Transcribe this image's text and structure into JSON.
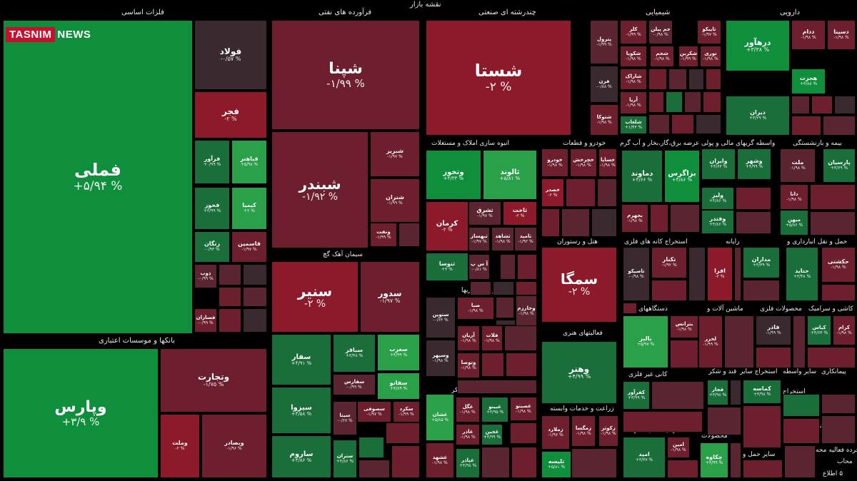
{
  "colors": {
    "g1": "#0f8f3c",
    "g2": "#1a6e3a",
    "g3": "#2aa048",
    "r1": "#8c1a2b",
    "r2": "#6e1f2d",
    "r3": "#5a2430",
    "n": "#3a2a30",
    "rb": "#b0192c"
  },
  "title": "نقشه بازار",
  "logo": {
    "brand": "TASNIM",
    "suffix": "NEWS",
    "tagline": ""
  },
  "sectors": [
    {
      "label": "فلزات اساسی"
    },
    {
      "label": "فرآورده های نفتی"
    },
    {
      "label": "چندرشته ای صنعتی"
    },
    {
      "label": "شیمیایی"
    },
    {
      "label": "دارویی"
    },
    {
      "label": "بانکها و موسسات اعتباری"
    },
    {
      "label": "سیمان آهک گچ"
    },
    {
      "label": "انبوه سازی املاک و مستغلات"
    },
    {
      "label": "خودرو و قطعات"
    },
    {
      "label": "عرضه برق،گاز،بخار و آب گرم"
    },
    {
      "label": "واسطه گریهای مالی و پولی"
    },
    {
      "label": "بیمه و بازنشستگی"
    },
    {
      "label": "هتل و رستوران"
    },
    {
      "label": "استخراج کانه های فلزی"
    },
    {
      "label": "رایانه"
    },
    {
      "label": "حمل و نقل انبارداری و"
    },
    {
      "label": "سرمایه گذاریها"
    },
    {
      "label": "فعالیتهای هنری"
    },
    {
      "label": "دستگاههای برقی"
    },
    {
      "label": "ماشین آلات و"
    },
    {
      "label": "محصولات فلزی"
    },
    {
      "label": "کاشی و سرامیک"
    },
    {
      "label": "غذایی بجز قند و شکر"
    },
    {
      "label": "کانی غیر فلزی"
    },
    {
      "label": "استخراج سایر"
    },
    {
      "label": "قند و شکر"
    },
    {
      "label": "سایر واسطه"
    },
    {
      "label": "پیمانکاری"
    },
    {
      "label": "زراعت و خدمات وابسته"
    },
    {
      "label": "فعالیتهای کمکی به نهاد"
    },
    {
      "label": "محصولات"
    },
    {
      "label": "استخراج"
    },
    {
      "label": "لاستیک و"
    },
    {
      "label": "فنی و"
    },
    {
      "label": "وسایل"
    },
    {
      "label": "سایر حمل و"
    },
    {
      "label": "منسوجات"
    },
    {
      "label": "خرده فعالیه محه"
    },
    {
      "label": "محاب"
    },
    {
      "label": "۵ اطلاع"
    }
  ],
  "tiles": [
    {
      "name": "فملی",
      "pct": "+۵/۹۴ %",
      "c": "g1"
    },
    {
      "name": "فولاد",
      "pct": "-۰/۵۷ %",
      "c": "n"
    },
    {
      "name": "فجر",
      "pct": "-۲ %",
      "c": "r1"
    },
    {
      "name": "فباهنر",
      "pct": "+۵/۹۸ %",
      "c": "g3"
    },
    {
      "name": "فرآور",
      "pct": "+۰/۹۹ %",
      "c": "g2"
    },
    {
      "name": "کیمیا",
      "pct": "+۲ %",
      "c": "g3"
    },
    {
      "name": "فخوز",
      "pct": "+۳/۹۹ %",
      "c": "g2"
    },
    {
      "name": "قاسمین",
      "pct": "-۱/۹۷ %",
      "c": "r2"
    },
    {
      "name": "زنگان",
      "pct": "-۰/۹۳ %",
      "c": "g2"
    },
    {
      "name": "ذوب",
      "pct": "-۰/۹۹ %",
      "c": "r3"
    },
    {
      "name": "فسازان",
      "pct": "-۰/۹۹ %",
      "c": "r2"
    },
    {
      "name": "شپنا",
      "pct": "-۱/۹۹ %",
      "c": "r2"
    },
    {
      "name": "شبندر",
      "pct": "-۱/۹۲ %",
      "c": "r2"
    },
    {
      "name": "شبریز",
      "pct": "-۱/۹۷ %",
      "c": "r2"
    },
    {
      "name": "شتران",
      "pct": "-۱/۹۹ %",
      "c": "r2"
    },
    {
      "name": "ونفت",
      "pct": "-۱/۹۹ %",
      "c": "r2"
    },
    {
      "name": "شستا",
      "pct": "-۲ %",
      "c": "r1"
    },
    {
      "name": "پترول",
      "pct": "-۱/۹۹ %",
      "c": "r3"
    },
    {
      "name": "فرن",
      "pct": "-۰/۸۸ %",
      "c": "n"
    },
    {
      "name": "شتوکا",
      "pct": "-۱/۹۸ %",
      "c": "r2"
    },
    {
      "name": "کلر",
      "pct": "-۱/۹۹ %",
      "c": "r2"
    },
    {
      "name": "جم پیلن",
      "pct": "-۰/۹۸ %",
      "c": "r3"
    },
    {
      "name": "تاپیکو",
      "pct": "-۱/۹۷ %",
      "c": "r2"
    },
    {
      "name": "شکویا",
      "pct": "-۱/۹۸ %",
      "c": "r2"
    },
    {
      "name": "شجم",
      "pct": "-۱/۹۸ %",
      "c": "r2"
    },
    {
      "name": "شکربن",
      "pct": "-۱/۹۹ %",
      "c": "r2"
    },
    {
      "name": "نوری",
      "pct": "-۱/۹۸ %",
      "c": "r2"
    },
    {
      "name": "شاراک",
      "pct": "-۱/۹۸ %",
      "c": "r2"
    },
    {
      "name": "آریا",
      "pct": "-۱/۹۸ %",
      "c": "r2"
    },
    {
      "name": "شلعاب",
      "pct": "+۱/۴۳ %",
      "c": "g2"
    },
    {
      "name": "درهآور",
      "pct": "+۳/۳۸ %",
      "c": "g1"
    },
    {
      "name": "ددام",
      "pct": "-۱/۹۸ %",
      "c": "r2"
    },
    {
      "name": "دسینا",
      "pct": "-۱/۹۸ %",
      "c": "r2"
    },
    {
      "name": "هجرت",
      "pct": "+۳/۸۸ %",
      "c": "g1"
    },
    {
      "name": "دیران",
      "pct": "+۳/۲۹ %",
      "c": "g2"
    },
    {
      "name": "وپارس",
      "pct": "+۳/۹ %",
      "c": "g1"
    },
    {
      "name": "وتجارت",
      "pct": "-۱/۷۵ %",
      "c": "r2"
    },
    {
      "name": "وملت",
      "pct": "-۲ %",
      "c": "r1"
    },
    {
      "name": "وبصادر",
      "pct": "-۱/۹۶ %",
      "c": "r2"
    },
    {
      "name": "سنیر",
      "pct": "-۲ %",
      "c": "r1"
    },
    {
      "name": "سدور",
      "pct": "-۱/۹۷ %",
      "c": "r2"
    },
    {
      "name": "سفار",
      "pct": "+۴/۹۱ %",
      "c": "g2"
    },
    {
      "name": "سباقر",
      "pct": "+۳/۴۸ %",
      "c": "g2"
    },
    {
      "name": "سغرب",
      "pct": "+۴/۹۹ %",
      "c": "g3"
    },
    {
      "name": "سفارس",
      "pct": "-۰/۹۹ %",
      "c": "r3"
    },
    {
      "name": "سفانو",
      "pct": "+۴/۸۹ %",
      "c": "g3"
    },
    {
      "name": "سیزوا",
      "pct": "+۴/۵۸ %",
      "c": "g2"
    },
    {
      "name": "سصوفی",
      "pct": "-۱/۹۷ %",
      "c": "r2"
    },
    {
      "name": "سکرد",
      "pct": "-۱/۹۹ %",
      "c": "r2"
    },
    {
      "name": "سینا",
      "pct": "-۰/۶۷ %",
      "c": "r3"
    },
    {
      "name": "ساروم",
      "pct": "+۴/۸۶ %",
      "c": "g2"
    },
    {
      "name": "ستران",
      "pct": "+۴/۸۶ %",
      "c": "g2"
    },
    {
      "name": "وتخوز",
      "pct": "+۴/۳۳ %",
      "c": "g1"
    },
    {
      "name": "ثالوند",
      "pct": "+۵/۸۱ %",
      "c": "g3"
    },
    {
      "name": "کرمان",
      "pct": "-۲ %",
      "c": "r1"
    },
    {
      "name": "ثشرق",
      "pct": "-۱/۹۷ %",
      "c": "r3"
    },
    {
      "name": "ثاخت",
      "pct": "-۲ %",
      "c": "r1"
    },
    {
      "name": "ثبهساز",
      "pct": "-۱/۹۷ %",
      "c": "r3"
    },
    {
      "name": "ثشاهد",
      "pct": "-۱/۹۸ %",
      "c": "r3"
    },
    {
      "name": "ثامید",
      "pct": "-۱/۹۲ %",
      "c": "r3"
    },
    {
      "name": "ثنوسا",
      "pct": "+۴ %",
      "c": "g2"
    },
    {
      "name": "آ س پ",
      "pct": "-۰/۸۱ %",
      "c": "r3"
    },
    {
      "name": "خساپا",
      "pct": "-۱/۹۸ %",
      "c": "r2"
    },
    {
      "name": "خچرخش",
      "pct": "-۱/۹۸ %",
      "c": "r2"
    },
    {
      "name": "خودرو",
      "pct": "-۱/۹۸ %",
      "c": "r2"
    },
    {
      "name": "خصدر",
      "pct": "-۲ %",
      "c": "r1"
    },
    {
      "name": "دماوند",
      "pct": "+۴/۶۶ %",
      "c": "g2"
    },
    {
      "name": "بزاگرس",
      "pct": "+۴/۸۶ %",
      "c": "g1"
    },
    {
      "name": "بجهرم",
      "pct": "-۱/۹۸ %",
      "c": "r2"
    },
    {
      "name": "وشهر",
      "pct": "+۴/۹۹ %",
      "c": "g2"
    },
    {
      "name": "وایران",
      "pct": "+۴/۶۳ %",
      "c": "g2"
    },
    {
      "name": "ولیز",
      "pct": "+۴/۸۶ %",
      "c": "g2"
    },
    {
      "name": "وفتدر",
      "pct": "+۴/۸۶ %",
      "c": "g2"
    },
    {
      "name": "ملت",
      "pct": "-۱/۹۸ %",
      "c": "r3"
    },
    {
      "name": "پارسیان",
      "pct": "+۳/۶۹ %",
      "c": "g2"
    },
    {
      "name": "دانا",
      "pct": "-۱/۹۸ %",
      "c": "r2"
    },
    {
      "name": "میهن",
      "pct": "+۵/۸۶ %",
      "c": "g2"
    },
    {
      "name": "سمگا",
      "pct": "-۲ %",
      "c": "r1"
    },
    {
      "name": "تکنار",
      "pct": "-۱/۹۲ %",
      "c": "r2"
    },
    {
      "name": "تاصیکو",
      "pct": "-۰/۹۸ %",
      "c": "n"
    },
    {
      "name": "افرا",
      "pct": "-۲ %",
      "c": "r1"
    },
    {
      "name": "مداران",
      "pct": "+۳/۳۹ %",
      "c": "g2"
    },
    {
      "name": "حکشتی",
      "pct": "-۱/۹۸ %",
      "c": "r2"
    },
    {
      "name": "حتاید",
      "pct": "+۳/۴۸ %",
      "c": "g2"
    },
    {
      "name": "ستوین",
      "pct": "-۰/۶۴ %",
      "c": "n"
    },
    {
      "name": "صبا",
      "pct": "-۱/۹۸ %",
      "c": "r2"
    },
    {
      "name": "وخارزم",
      "pct": "-۱/۹۸ %",
      "c": "r3"
    },
    {
      "name": "وسپهر",
      "pct": "-۱/۹۸ %",
      "c": "n"
    },
    {
      "name": "آریان",
      "pct": "-۱/۹۸ %",
      "c": "r2"
    },
    {
      "name": "فلات",
      "pct": "-۱/۹۸ %",
      "c": "r2"
    },
    {
      "name": "وتوصا",
      "pct": "-۱/۹۸ %",
      "c": "r2"
    },
    {
      "name": "وهنر",
      "pct": "+۴/۹۹ %",
      "c": "g2"
    },
    {
      "name": "بالبر",
      "pct": "+۵/۹۷ %",
      "c": "g3"
    },
    {
      "name": "بترانس",
      "pct": "-۱/۹۸ %",
      "c": "r2"
    },
    {
      "name": "لخزر",
      "pct": "-۱/۹۹ %",
      "c": "r2"
    },
    {
      "name": "فاذر",
      "pct": "-۱/۹۹ %",
      "c": "n"
    },
    {
      "name": "کیاس",
      "pct": "+۴/۶۴ %",
      "c": "g2"
    },
    {
      "name": "کرام",
      "pct": "-۱/۹۸ %",
      "c": "r2"
    },
    {
      "name": "غشان",
      "pct": "+۵/۸۵ %",
      "c": "g3"
    },
    {
      "name": "غگل",
      "pct": "-۱/۹۸ %",
      "c": "r2"
    },
    {
      "name": "غبینو",
      "pct": "+۴/۹۵ %",
      "c": "g2"
    },
    {
      "name": "غصینو",
      "pct": "-۱/۹۸ %",
      "c": "r2"
    },
    {
      "name": "غاذر",
      "pct": "-۱/۹۸ %",
      "c": "r2"
    },
    {
      "name": "غجین",
      "pct": "+۴/۹۹ %",
      "c": "g2"
    },
    {
      "name": "غشهد",
      "pct": "-۱/۹۸ %",
      "c": "r2"
    },
    {
      "name": "غپاذر",
      "pct": "+۴/۹۸ %",
      "c": "g2"
    },
    {
      "name": "کفرآور",
      "pct": "+۳/۹۹ %",
      "c": "g2"
    },
    {
      "name": "فجار",
      "pct": "+۳/۹۸ %",
      "c": "g2"
    },
    {
      "name": "کماسه",
      "pct": "+۳/۹۸ %",
      "c": "g2"
    },
    {
      "name": "زملارد",
      "pct": "-۱/۹۷ %",
      "c": "r2"
    },
    {
      "name": "زمگسا",
      "pct": "-۱/۹۸ %",
      "c": "r2"
    },
    {
      "name": "زکوثر",
      "pct": "-۱/۹۸ %",
      "c": "r2"
    },
    {
      "name": "تلیسه",
      "pct": "+۵/۸۱ %",
      "c": "g1"
    },
    {
      "name": "امید",
      "pct": "+۳/۳۷ %",
      "c": "g2"
    },
    {
      "name": "امین",
      "pct": "-۱/۹۸ %",
      "c": "r2"
    },
    {
      "name": "چکاوه",
      "pct": "+۳/۹۹ %",
      "c": "g3"
    }
  ]
}
